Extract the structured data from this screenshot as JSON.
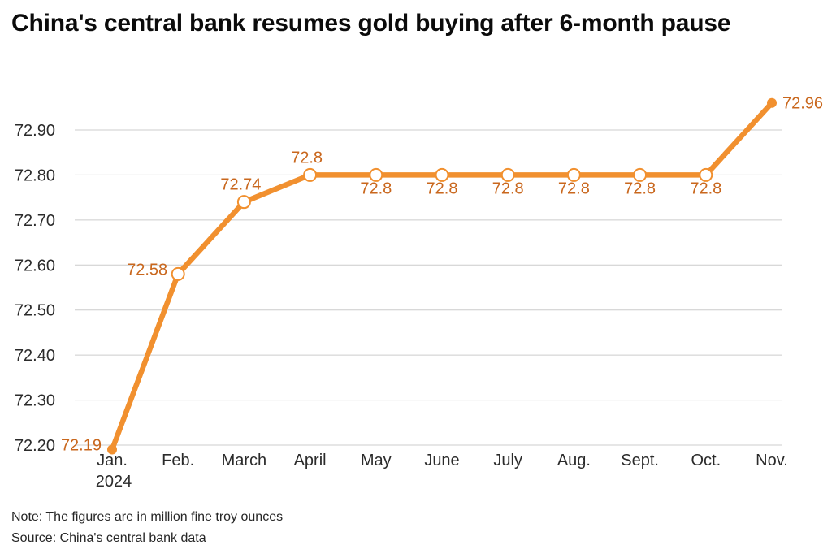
{
  "chart_data": {
    "type": "line",
    "title": "China's central bank resumes gold buying after 6-month pause",
    "categories": [
      "Jan.",
      "Feb.",
      "March",
      "April",
      "May",
      "June",
      "July",
      "Aug.",
      "Sept.",
      "Oct.",
      "Nov."
    ],
    "first_category_year": "2024",
    "values": [
      72.19,
      72.58,
      72.74,
      72.8,
      72.8,
      72.8,
      72.8,
      72.8,
      72.8,
      72.8,
      72.96
    ],
    "value_labels": [
      "72.19",
      "72.58",
      "72.74",
      "72.8",
      "72.8",
      "72.8",
      "72.8",
      "72.8",
      "72.8",
      "72.8",
      "72.96"
    ],
    "label_placement": [
      "left",
      "left",
      "above",
      "above",
      "below",
      "below",
      "below",
      "below",
      "below",
      "below",
      "right"
    ],
    "yticks": [
      72.2,
      72.3,
      72.4,
      72.5,
      72.6,
      72.7,
      72.8,
      72.9
    ],
    "ytick_labels": [
      "72.20",
      "72.30",
      "72.40",
      "72.50",
      "72.60",
      "72.70",
      "72.80",
      "72.90"
    ],
    "ylim": [
      72.19,
      72.96
    ],
    "xlabel": "",
    "ylabel": "",
    "grid": "horizontal",
    "legend": "none",
    "marker": "hollow-circle-with-solid-endpoints",
    "note": "Note: The figures are in million fine troy ounces",
    "source": "Source: China's central bank data",
    "colors": {
      "line": "#F1902F",
      "value_labels": "#C9671D",
      "grid": "#CCCCCC",
      "axis_labels": "#2B2B2B",
      "title": "#0B0B0B"
    }
  }
}
